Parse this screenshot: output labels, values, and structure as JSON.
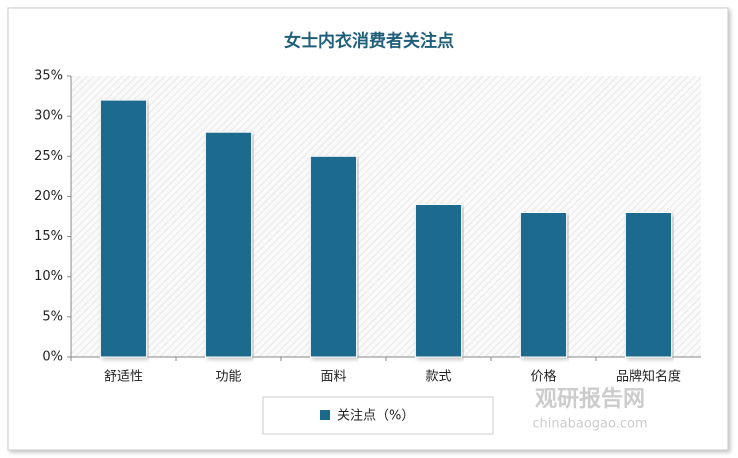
{
  "chart_data": {
    "type": "bar",
    "title": "女士内衣消费者关注点",
    "categories": [
      "舒适性",
      "功能",
      "面料",
      "款式",
      "价格",
      "品牌知名度"
    ],
    "series": [
      {
        "name": "关注点（%）",
        "color": "#1b6a8e",
        "values": [
          32,
          28,
          25,
          19,
          18,
          18
        ]
      }
    ],
    "ylim": [
      0,
      35
    ],
    "yticks": [
      {
        "value": 0,
        "label": "0%"
      },
      {
        "value": 5,
        "label": "5%"
      },
      {
        "value": 10,
        "label": "10%"
      },
      {
        "value": 15,
        "label": "15%"
      },
      {
        "value": 20,
        "label": "20%"
      },
      {
        "value": 25,
        "label": "25%"
      },
      {
        "value": 30,
        "label": "30%"
      },
      {
        "value": 35,
        "label": "35%"
      }
    ],
    "grid": false,
    "legend": "bottom",
    "watermark": [
      "观研报告网",
      "chinabaogao.com"
    ]
  }
}
